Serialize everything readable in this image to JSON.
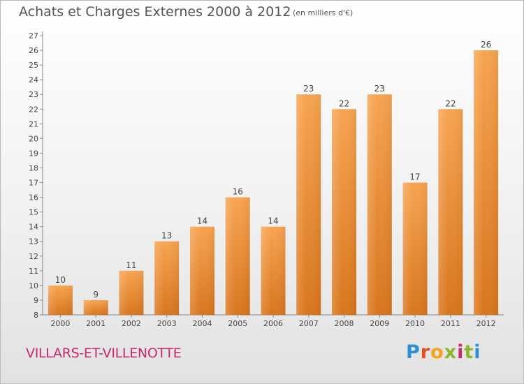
{
  "title": "Achats et Charges Externes 2000 à 2012",
  "subtitle": "(en milliers d'€)",
  "commune": "VILLARS-ET-VILLENOTTE",
  "logo_text": "Proxiti",
  "colors": {
    "bar_top": "#f7a451",
    "bar_bottom": "#d9761d",
    "commune": "#c6296e"
  },
  "chart_data": {
    "type": "bar",
    "title": "Achats et Charges Externes 2000 à 2012",
    "subtitle": "(en milliers d'€)",
    "categories": [
      "2000",
      "2001",
      "2002",
      "2003",
      "2004",
      "2005",
      "2006",
      "2007",
      "2008",
      "2009",
      "2010",
      "2011",
      "2012"
    ],
    "values": [
      10,
      9,
      11,
      13,
      14,
      16,
      14,
      23,
      22,
      23,
      17,
      22,
      26
    ],
    "ylim": [
      8,
      27
    ],
    "yticks": [
      8,
      9,
      10,
      11,
      12,
      13,
      14,
      15,
      16,
      17,
      18,
      19,
      20,
      21,
      22,
      23,
      24,
      25,
      26,
      27
    ],
    "grid": false,
    "data_labels": true
  }
}
